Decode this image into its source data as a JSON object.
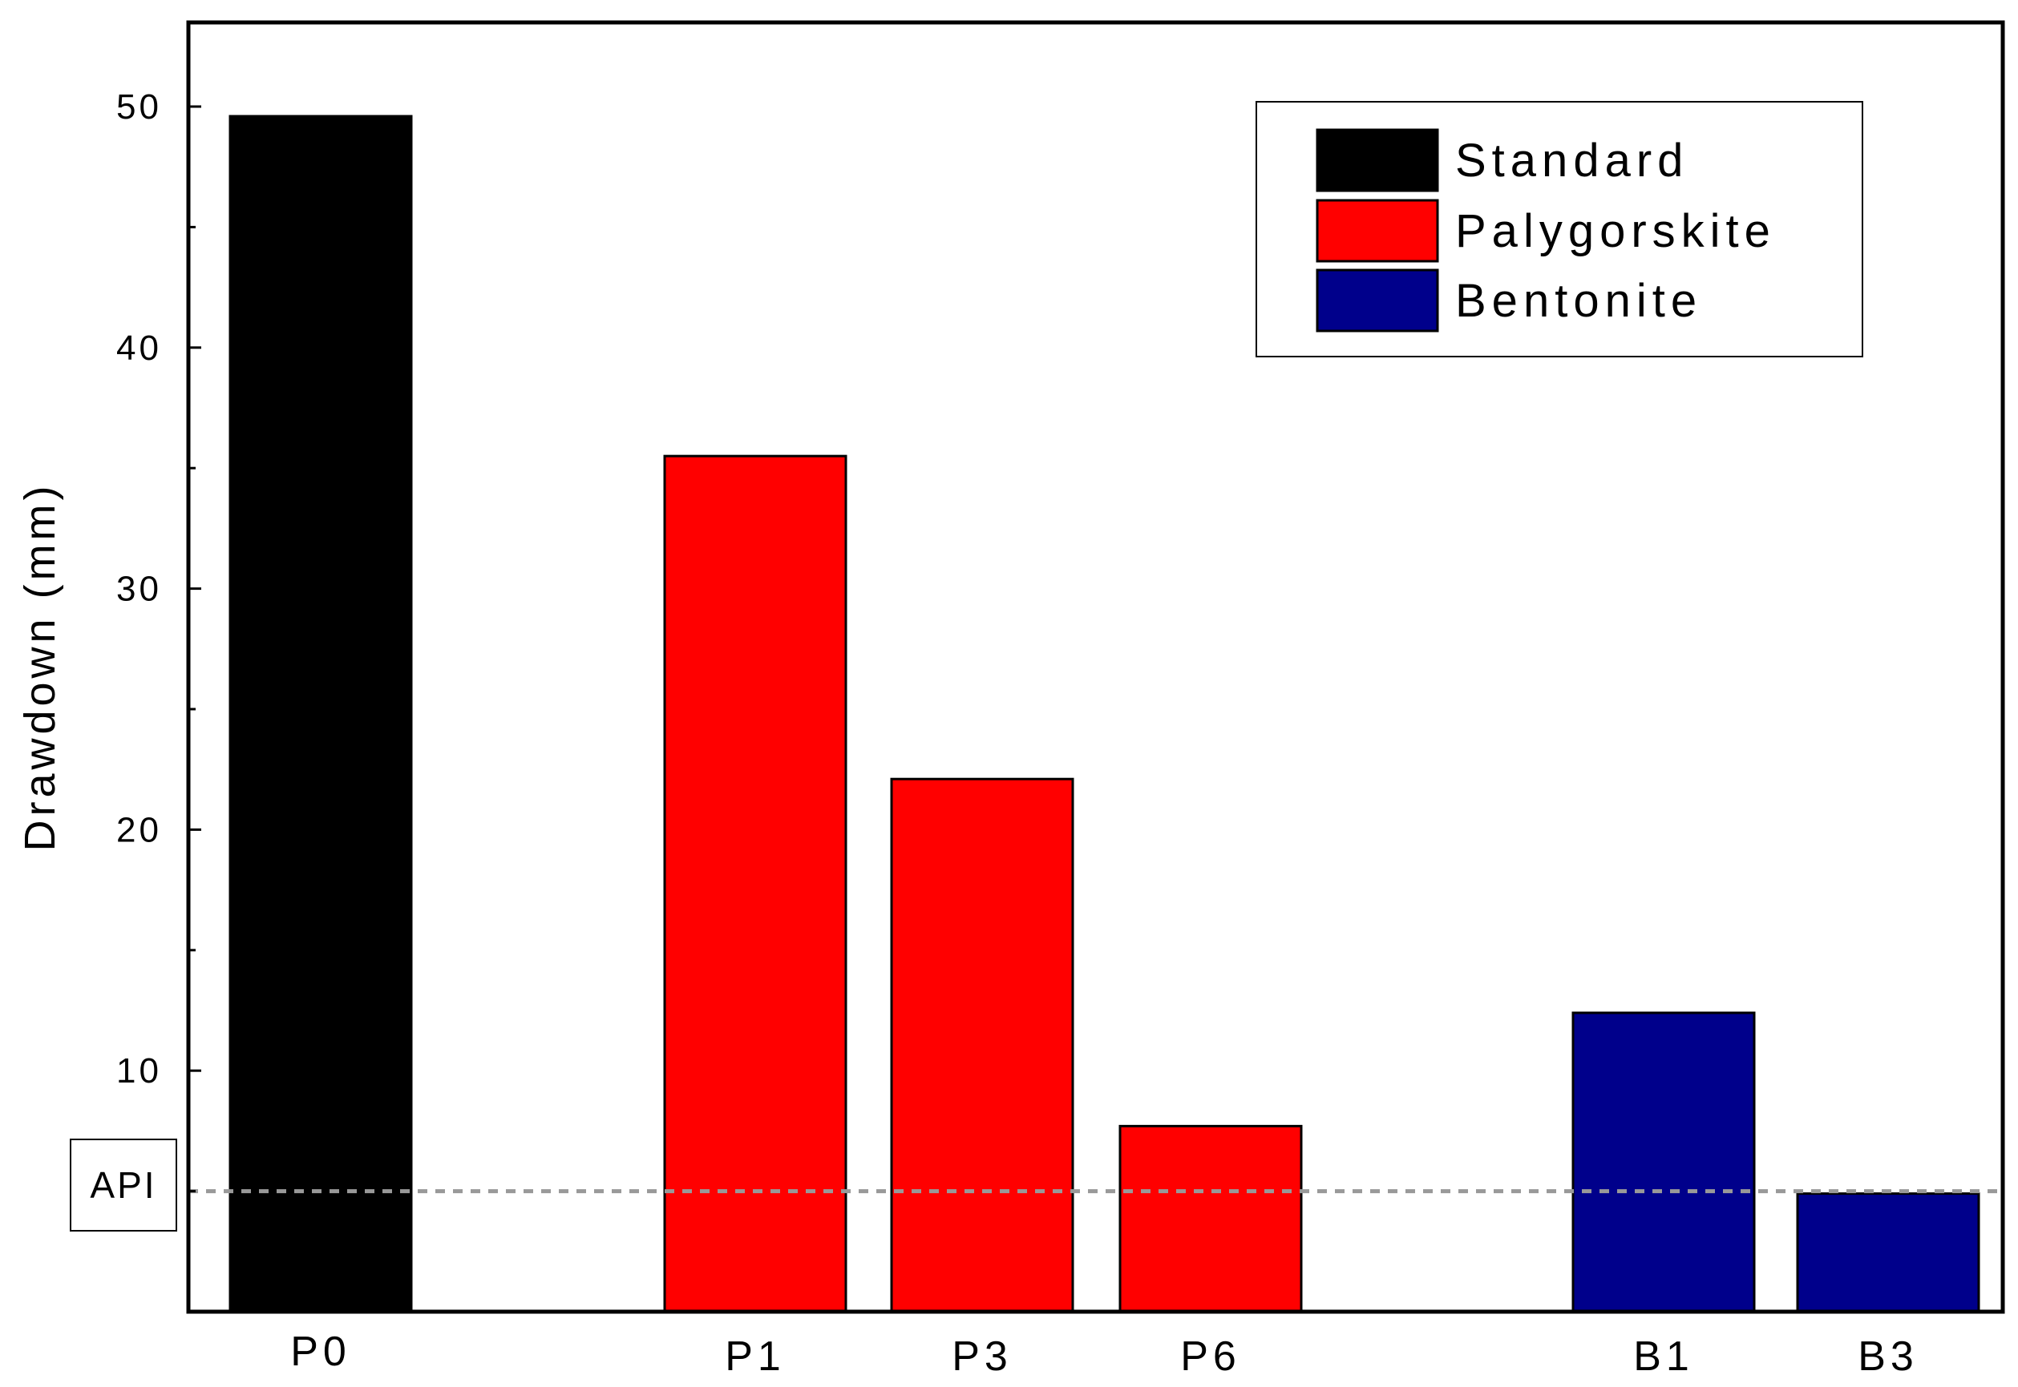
{
  "chart_data": {
    "type": "bar",
    "title": "",
    "xlabel": "",
    "ylabel": "Drawdown (mm)",
    "ylim": [
      0,
      53
    ],
    "yticks": [
      10,
      20,
      30,
      40,
      50
    ],
    "grid": false,
    "legend_position": "top-right",
    "categories": [
      "P0",
      "P1",
      "P3",
      "P6",
      "B1",
      "B3"
    ],
    "values": [
      49.6,
      35.5,
      22.1,
      7.7,
      12.4,
      4.9
    ],
    "groups": [
      "Standard",
      "Palygorskite",
      "Palygorskite",
      "Palygorskite",
      "Bentonite",
      "Bentonite"
    ],
    "series": [
      {
        "name": "Standard",
        "color": "#000000"
      },
      {
        "name": "Palygorskite",
        "color": "#ff0000"
      },
      {
        "name": "Bentonite",
        "color": "#00008b"
      }
    ],
    "reference_line": {
      "label": "API",
      "value": 5.0,
      "style": "dashed",
      "color": "#999999"
    }
  }
}
